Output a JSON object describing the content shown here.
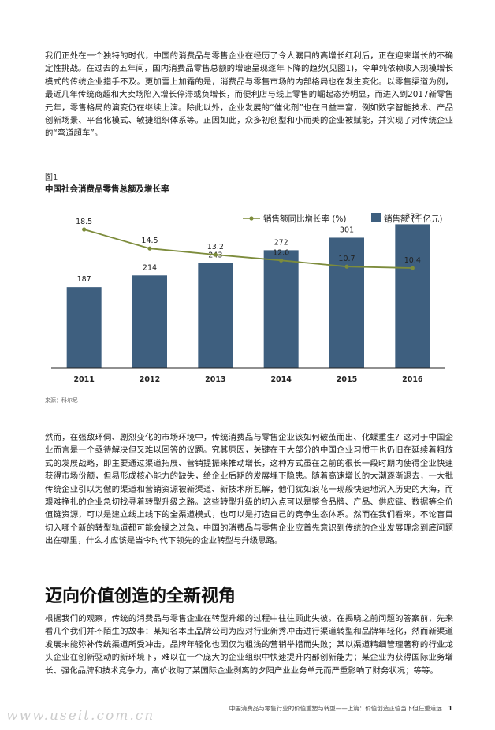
{
  "paragraphs": {
    "p1": "我们正处在一个独特的时代，中国的消费品与零售企业在经历了令人瞩目的高增长红利后，正在迎来增长的不确定性挑战。在过去的五年间，国内消费品零售总额的增速呈现逐年下降的趋势(见图1)，令单纯依赖收入规模增长模式的传统企业措手不及。更加雪上加霜的是，消费品与零售市场的内部格局也在发生变化。以零售渠道为例，最近几年传统商超和大卖场陷入增长停滞或负增长，而便利店与线上零售的崛起态势明显，而进入到2017新零售元年，零售格局的演变仍在继续上演。除此以外，企业发展的“催化剂”也在日益丰富，例如数字智能技术、产品创新场景、平台化模式、敏捷组织体系等。正因如此，众多初创型和小而美的企业被赋能，并实现了对传统企业的“弯道超车”。",
    "p2": "然而，在强敌环伺、剧烈变化的市场环境中，传统消费品与零售企业该如何破茧而出、化蝶重生？这对于中国企业而言是一个亟待解决但又难以回答的议题。究其原因，关键在于大部分的中国企业习惯于也仍旧在延续着粗放式的发展战略，即主要通过渠道拓展、营销提振来推动增长，这种方式虽在之前的很长一段时期内使得企业快速获得市场份额，但易形成核心能力的缺失，给企业后期的发展埋下隐患。随着高速增长的大潮逐渐退去，一大批传统企业引以为傲的渠道和营销资源被新渠道、新技术所瓦解，他们犹如浪花一现般快速地沉入历史的大海，而艰难挣扎的企业急切找寻着转型升级之路。这些转型升级的切入点可以是整合品牌、产品、供应链、数据等全价值链资源，可以是建立线上线下的全渠道模式，也可以是打造自己的竞争生态体系。然而在我们看来，不论盲目切入哪个新的转型轨道都可能会操之过急，中国的消费品与零售企业应首先意识到传统的企业发展理念到底问题出在哪里，什么才应该是当今时代下领先的企业转型与升级思路。",
    "p3": "根据我们的观察，传统的消费品与零售企业在转型升级的过程中往往顾此失彼。在揭晓之前问题的答案前，先来看几个我们并不陌生的故事：某知名本土品牌公司为应对行业新秀冲击进行渠道转型和品牌年轻化，然而新渠道发展未能弥补传统渠道所受冲击，品牌年轻化也因仅为粗浅的营销举措而失败；某以渠道精细管理著称的行业龙头企业在创新驱动的新环境下，难以在一个庞大的企业组织中快速提升内部创新能力；某企业为获得国际业务增长、强化品牌和技术竞争力，高价收购了某国际企业剥离的夕阳产业业务单元而严重影响了财务状况；等等。"
  },
  "figure": {
    "label": "图1",
    "title": "中国社会消费品零售总额及增长率",
    "source": "来源：科尔尼"
  },
  "section_heading": "迈向价值创造的全新视角",
  "footer": {
    "text": "中国消费品与零售行业的价值重塑与转型——上篇：价值创造正值当下但任重道远",
    "page": "1"
  },
  "watermark": "www.useit.com.cn",
  "chart_data": {
    "type": "bar",
    "categories": [
      "2011",
      "2012",
      "2013",
      "2014",
      "2015",
      "2016"
    ],
    "series": [
      {
        "name": "销售额 (千亿元)",
        "type": "bar",
        "values": [
          187,
          214,
          243,
          272,
          301,
          332
        ],
        "color": "#3e5f7f"
      },
      {
        "name": "销售额同比增长率 (%)",
        "type": "line",
        "values": [
          18.5,
          14.5,
          13.2,
          12.0,
          10.7,
          10.4
        ],
        "color": "#7d8c3c"
      }
    ],
    "value_labels_bar": [
      "187",
      "214",
      "243",
      "272",
      "301",
      "332"
    ],
    "value_labels_line": [
      "18.5",
      "14.5",
      "13.2",
      "12.0",
      "10.7",
      "10.4"
    ],
    "legend_placement": "top-right",
    "grid": false
  }
}
